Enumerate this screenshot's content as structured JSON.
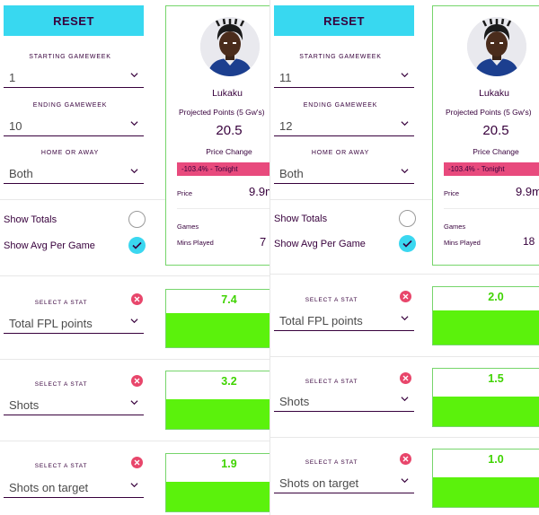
{
  "panels": [
    {
      "reset_label": "RESET",
      "starting_gameweek": {
        "label": "STARTING GAMEWEEK",
        "value": "1"
      },
      "ending_gameweek": {
        "label": "ENDING GAMEWEEK",
        "value": "10"
      },
      "home_or_away": {
        "label": "HOME OR AWAY",
        "value": "Both"
      },
      "show_totals": {
        "label": "Show Totals",
        "checked": false
      },
      "show_avg": {
        "label": "Show Avg Per Game",
        "checked": true
      },
      "player": {
        "name": "Lukaku",
        "projected_label": "Projected Points (5 Gw's)",
        "projected_value": "20.5",
        "price_change_label": "Price Change",
        "price_change_value": "-103.4% - Tonight",
        "price_label": "Price",
        "price_value": "9.9m",
        "games_label": "Games",
        "mins_label": "Mins Played",
        "mins_value": "7"
      },
      "stats": [
        {
          "label": "SELECT A STAT",
          "stat": "Total FPL points",
          "value": "7.4",
          "fill_fraction": 0.6
        },
        {
          "label": "SELECT A STAT",
          "stat": "Shots",
          "value": "3.2",
          "fill_fraction": 0.52
        },
        {
          "label": "SELECT A STAT",
          "stat": "Shots on target",
          "value": "1.9",
          "fill_fraction": 0.52
        }
      ]
    },
    {
      "reset_label": "RESET",
      "starting_gameweek": {
        "label": "STARTING GAMEWEEK",
        "value": "11"
      },
      "ending_gameweek": {
        "label": "ENDING GAMEWEEK",
        "value": "12"
      },
      "home_or_away": {
        "label": "HOME OR AWAY",
        "value": "Both"
      },
      "show_totals": {
        "label": "Show Totals",
        "checked": false
      },
      "show_avg": {
        "label": "Show Avg Per Game",
        "checked": true
      },
      "player": {
        "name": "Lukaku",
        "projected_label": "Projected Points (5 Gw's)",
        "projected_value": "20.5",
        "price_change_label": "Price Change",
        "price_change_value": "-103.4% - Tonight",
        "price_label": "Price",
        "price_value": "9.9m",
        "games_label": "Games",
        "mins_label": "Mins Played",
        "mins_value": "18"
      },
      "stats": [
        {
          "label": "SELECT A STAT",
          "stat": "Total FPL points",
          "value": "2.0",
          "fill_fraction": 0.6
        },
        {
          "label": "SELECT A STAT",
          "stat": "Shots",
          "value": "1.5",
          "fill_fraction": 0.52
        },
        {
          "label": "SELECT A STAT",
          "stat": "Shots on target",
          "value": "1.0",
          "fill_fraction": 0.52
        }
      ]
    }
  ],
  "colors": {
    "accent_cyan": "#38d8f0",
    "price_change_pink": "#e84a7d",
    "bar_green": "#5bf20c",
    "value_green": "#3fd300",
    "remove_red": "#e8466b",
    "text_purple": "#37003c"
  },
  "icons": {
    "chevron": "chevron-down-icon",
    "check": "check-icon",
    "remove": "close-icon"
  }
}
